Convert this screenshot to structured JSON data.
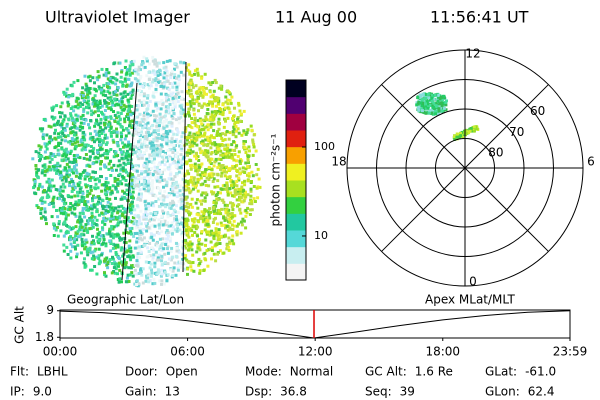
{
  "header": {
    "instrument": "Ultraviolet Imager",
    "date": "11 Aug 00",
    "time": "11:56:41 UT"
  },
  "colorbar": {
    "label": "photon cm⁻²s⁻¹",
    "scale": "log",
    "lim": [
      3.2,
      566
    ],
    "ticks": [
      10,
      100
    ],
    "colors": [
      "#f4f4f4",
      "#c8eef0",
      "#55d8d8",
      "#22c8a0",
      "#33d040",
      "#a8e020",
      "#f0f020",
      "#f8a000",
      "#e02010",
      "#a00040",
      "#500070",
      "#000020"
    ]
  },
  "polar": {
    "rlim": [
      90,
      50
    ],
    "rings": [
      80,
      70,
      60
    ],
    "mlt_labels": [
      {
        "value": 12,
        "label": "12"
      },
      {
        "value": 18,
        "label": "18"
      },
      {
        "value": 6,
        "label": "6"
      },
      {
        "value": 0,
        "label": "0"
      }
    ]
  },
  "timeline": {
    "left_label": "Geographic Lat/Lon",
    "right_label": "Apex MLat/MLT",
    "y_label": "GC Alt",
    "xlim": [
      0,
      1439
    ],
    "ylim": [
      1.6,
      9.2
    ],
    "yticks": [
      9.0,
      1.8
    ],
    "xticks": [
      {
        "value": 0,
        "label": "00:00"
      },
      {
        "value": 360,
        "label": "06:00"
      },
      {
        "value": 720,
        "label": "12:00"
      },
      {
        "value": 1080,
        "label": "18:00"
      },
      {
        "value": 1439,
        "label": "23:59"
      }
    ],
    "x": [
      0,
      120,
      240,
      360,
      480,
      600,
      716.7,
      840,
      960,
      1080,
      1200,
      1320,
      1439
    ],
    "altitude": [
      8.9,
      8.5,
      7.6,
      6.3,
      4.8,
      3.2,
      1.6,
      3.3,
      5.0,
      6.5,
      7.7,
      8.6,
      9.0
    ],
    "current_time": 716.7,
    "current_color": "#dd0000"
  },
  "footer": [
    [
      {
        "label": "Flt:",
        "value": "LBHL"
      },
      {
        "label": "Door:",
        "value": "Open"
      },
      {
        "label": "Mode:",
        "value": "Normal"
      },
      {
        "label": "GC Alt:",
        "value": "1.6 Re"
      },
      {
        "label": "GLat:",
        "value": "-61.0"
      }
    ],
    [
      {
        "label": "IP:",
        "value": "9.0"
      },
      {
        "label": "Gain:",
        "value": "13"
      },
      {
        "label": "Dsp:",
        "value": "36.8"
      },
      {
        "label": "Seq:",
        "value": "39"
      },
      {
        "label": "GLon:",
        "value": "62.4"
      }
    ]
  ]
}
